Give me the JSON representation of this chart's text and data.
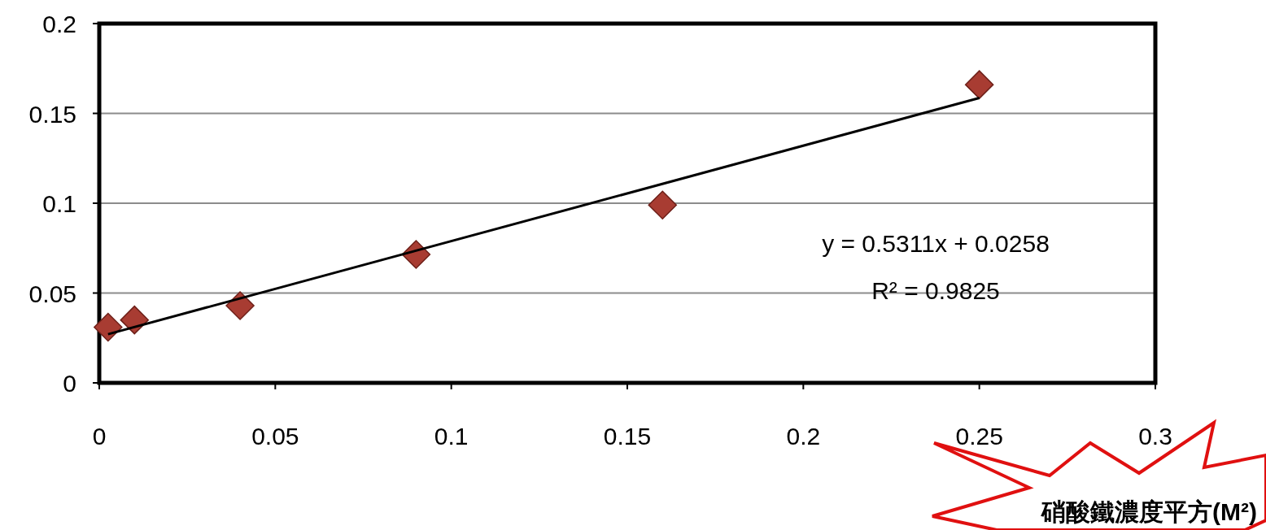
{
  "chart_data": {
    "type": "scatter",
    "xlabel": "硝酸鐵濃度平方(M²)",
    "xlim": [
      0,
      0.3
    ],
    "xticks": [
      0,
      0.05,
      0.1,
      0.15,
      0.2,
      0.25,
      0.3
    ],
    "ylim": [
      0,
      0.2
    ],
    "yticks": [
      0,
      0.05,
      0.1,
      0.15,
      0.2
    ],
    "grid": "y",
    "series": [
      {
        "color": "#a83c32",
        "marker": "diamond",
        "x": [
          0.0025,
          0.01,
          0.04,
          0.09,
          0.16,
          0.25
        ],
        "values": [
          0.031,
          0.035,
          0.043,
          0.0715,
          0.099,
          0.166
        ]
      },
      {
        "type": "line",
        "color": "#000000",
        "x": [
          0.0025,
          0.25
        ],
        "values": [
          0.0271,
          0.1586
        ]
      }
    ],
    "annotations": [
      "y = 0.5311x + 0.0258",
      "R² = 0.9825"
    ]
  }
}
